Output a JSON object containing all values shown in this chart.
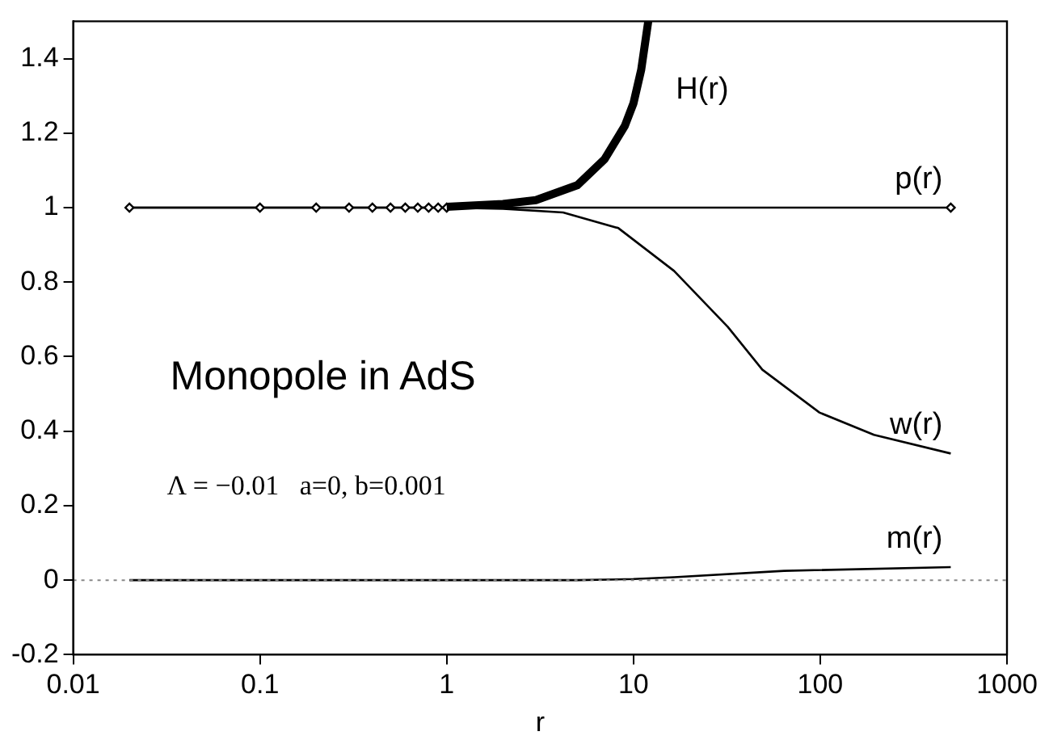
{
  "chart_data": {
    "type": "line",
    "xlabel": "r",
    "log": "x",
    "xlim": [
      0.01,
      1000
    ],
    "xticks": [
      0.01,
      0.1,
      1,
      10,
      100,
      1000
    ],
    "ylim": [
      -0.2,
      1.5
    ],
    "yticks": [
      -0.2,
      0,
      0.2,
      0.4,
      0.6,
      0.8,
      1,
      1.2,
      1.4
    ],
    "grid": false,
    "legend": false,
    "line_style": "solid",
    "annotations": [
      "Monopole in AdS",
      "Λ = −0.01   a=0, b=0.001"
    ],
    "ref_lines": [
      {
        "axis": "y",
        "value": 0,
        "color": "#888888",
        "line_style": "dotted"
      }
    ],
    "series": [
      {
        "name": "H(r)",
        "color": "#000000",
        "x": [
          1,
          2,
          3,
          5,
          7,
          9,
          10,
          11,
          12
        ],
        "values": [
          1.002,
          1.01,
          1.02,
          1.06,
          1.13,
          1.22,
          1.28,
          1.37,
          1.5
        ]
      },
      {
        "name": "p(r)",
        "color": "#000000",
        "marker": "diamond",
        "x": [
          0.02,
          0.1,
          0.2,
          0.3,
          0.4,
          0.5,
          0.6,
          0.7,
          0.8,
          0.9,
          1,
          500
        ],
        "values": [
          1,
          1,
          1,
          1,
          1,
          1,
          1,
          1,
          1,
          1,
          1,
          1
        ]
      },
      {
        "name": "w(r)",
        "color": "#000000",
        "x": [
          0.02,
          1,
          2,
          4.2,
          8.3,
          16.5,
          32,
          49,
          99,
          194,
          500
        ],
        "values": [
          1,
          1,
          0.997,
          0.987,
          0.945,
          0.83,
          0.68,
          0.565,
          0.45,
          0.39,
          0.34
        ]
      },
      {
        "name": "m(r)",
        "color": "#000000",
        "x": [
          0.02,
          5,
          10,
          16.5,
          64,
          500
        ],
        "values": [
          0,
          0,
          0.003,
          0.008,
          0.025,
          0.035
        ]
      }
    ]
  }
}
